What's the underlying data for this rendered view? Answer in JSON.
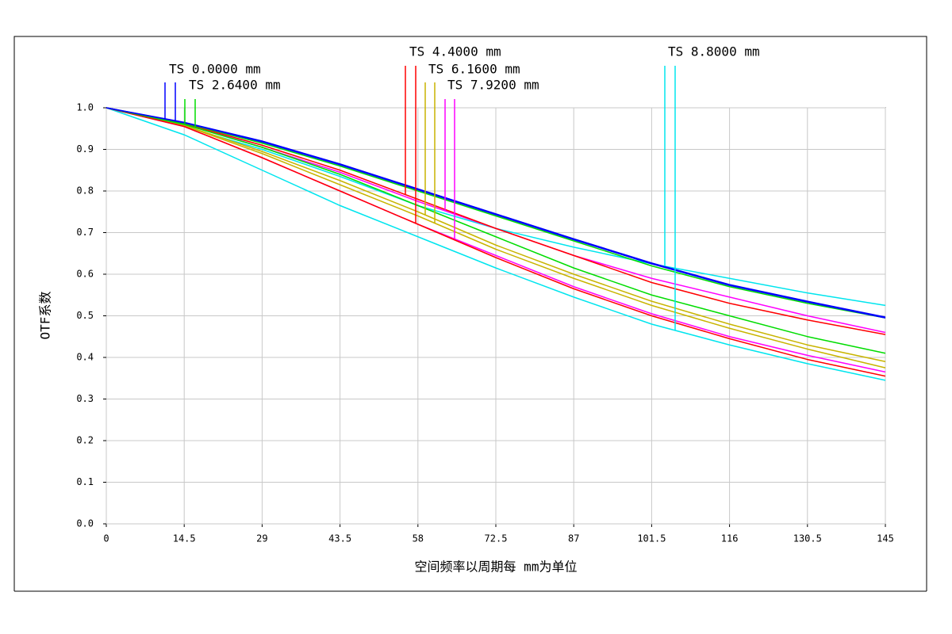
{
  "chart_data": {
    "type": "line",
    "x_label": "空间频率以周期每 mm为单位",
    "y_label": "OTF系数",
    "x": [
      0,
      14.5,
      29,
      43.5,
      58,
      72.5,
      87,
      101.5,
      116,
      130.5,
      145
    ],
    "xlim": [
      0,
      145
    ],
    "ylim": [
      0,
      1
    ],
    "xticks": [
      0,
      14.5,
      29,
      43.5,
      58,
      72.5,
      87,
      101.5,
      116,
      130.5,
      145
    ],
    "yticks": [
      {
        "value": 0,
        "label": "0.0"
      },
      {
        "value": 0.1,
        "label": "0.1"
      },
      {
        "value": 0.2,
        "label": "0.2"
      },
      {
        "value": 0.3,
        "label": "0.3"
      },
      {
        "value": 0.4,
        "label": "0.4"
      },
      {
        "value": 0.5,
        "label": "0.5"
      },
      {
        "value": 0.6,
        "label": "0.6"
      },
      {
        "value": 0.7,
        "label": "0.7"
      },
      {
        "value": 0.8,
        "label": "0.8"
      },
      {
        "value": 0.9,
        "label": "0.9"
      },
      {
        "value": 1,
        "label": "1.0"
      }
    ],
    "grid": true,
    "series": [
      {
        "name": "TS 0.0000 mm",
        "color": "#0000ff",
        "values": [
          1,
          0.965,
          0.92,
          0.865,
          0.805,
          0.745,
          0.685,
          0.627,
          0.575,
          0.535,
          0.497
        ],
        "sagittal": [
          1,
          0.964,
          0.918,
          0.863,
          0.803,
          0.743,
          0.683,
          0.625,
          0.573,
          0.533,
          0.495
        ]
      },
      {
        "name": "TS 2.6400 mm",
        "color": "#00dd00",
        "values": [
          1,
          0.963,
          0.915,
          0.86,
          0.8,
          0.74,
          0.68,
          0.62,
          0.57,
          0.53,
          0.495
        ],
        "sagittal": [
          1,
          0.96,
          0.905,
          0.84,
          0.765,
          0.69,
          0.615,
          0.55,
          0.5,
          0.45,
          0.41
        ]
      },
      {
        "name": "TS 4.4000 mm",
        "color": "#ff0000",
        "values": [
          1,
          0.962,
          0.91,
          0.85,
          0.78,
          0.71,
          0.645,
          0.58,
          0.53,
          0.49,
          0.455
        ],
        "sagittal": [
          1,
          0.955,
          0.88,
          0.8,
          0.72,
          0.64,
          0.565,
          0.5,
          0.445,
          0.395,
          0.355
        ]
      },
      {
        "name": "TS 6.1600 mm",
        "color": "#c8b400",
        "values": [
          1,
          0.958,
          0.895,
          0.825,
          0.75,
          0.67,
          0.6,
          0.535,
          0.48,
          0.43,
          0.39
        ],
        "sagittal": [
          1,
          0.957,
          0.89,
          0.815,
          0.74,
          0.66,
          0.59,
          0.525,
          0.47,
          0.42,
          0.375
        ]
      },
      {
        "name": "TS 7.9200 mm",
        "color": "#ff00ff",
        "values": [
          1,
          0.962,
          0.905,
          0.845,
          0.775,
          0.71,
          0.645,
          0.59,
          0.545,
          0.5,
          0.46
        ],
        "sagittal": [
          1,
          0.955,
          0.88,
          0.8,
          0.72,
          0.645,
          0.57,
          0.505,
          0.45,
          0.405,
          0.365
        ]
      },
      {
        "name": "TS 8.8000 mm",
        "color": "#00e5ee",
        "values": [
          1,
          0.955,
          0.9,
          0.835,
          0.765,
          0.71,
          0.665,
          0.625,
          0.59,
          0.555,
          0.525
        ],
        "sagittal": [
          1,
          0.935,
          0.85,
          0.765,
          0.69,
          0.615,
          0.545,
          0.48,
          0.43,
          0.385,
          0.345
        ]
      }
    ]
  }
}
